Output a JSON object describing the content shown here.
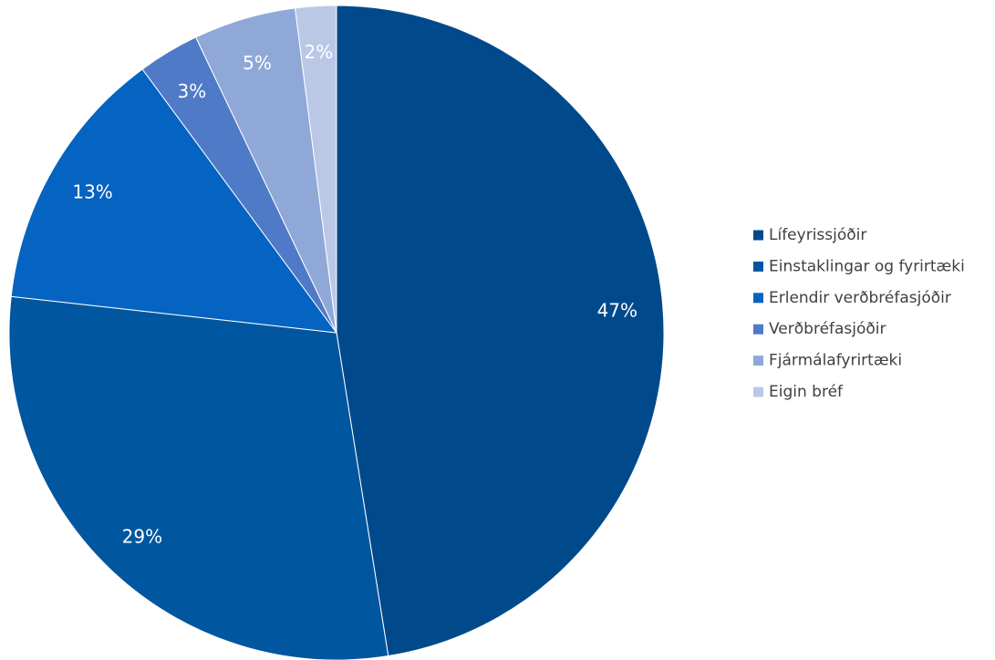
{
  "chart_data": {
    "type": "pie",
    "categories": [
      "Lífeyrissjóðir",
      "Einstaklingar og fyrirtæki",
      "Erlendir verðbréfasjóðir",
      "Verðbréfasjóðir",
      "Fjármálafyrirtæki",
      "Eigin bréf"
    ],
    "values": [
      47,
      29,
      13,
      3,
      5,
      2
    ],
    "data_labels": [
      "47%",
      "29%",
      "13%",
      "3%",
      "5%",
      "2%"
    ],
    "colors": [
      "#004A8C",
      "#00569F",
      "#0563C1",
      "#4F7AC7",
      "#8FA8D8",
      "#BAC8E6"
    ],
    "legend_position": "right",
    "start_angle": "12 o'clock",
    "direction": "clockwise"
  }
}
